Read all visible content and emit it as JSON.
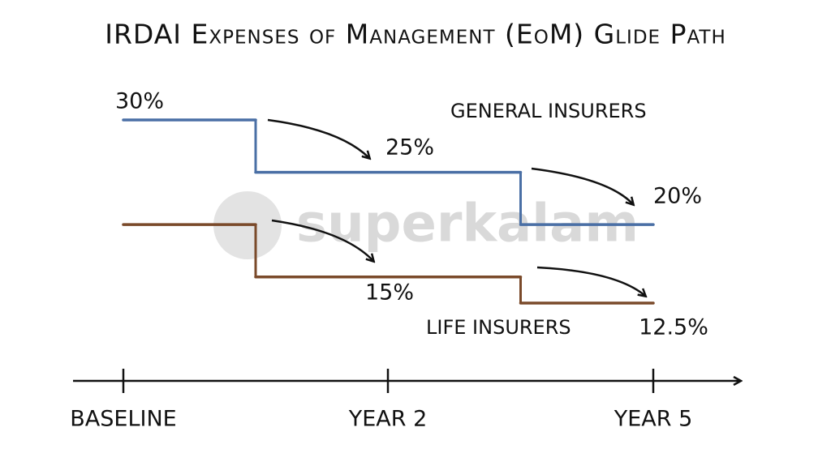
{
  "chart_data": {
    "type": "step",
    "title": "IRDAI Expenses of Management (EoM) Glide Path",
    "watermark": "superkalam",
    "categories": [
      "BASELINE",
      "YEAR 2",
      "YEAR 5"
    ],
    "series": [
      {
        "name": "GENERAL INSURERS",
        "color": "#4a6fa5",
        "values": [
          30,
          25,
          20
        ],
        "value_labels": [
          "30%",
          "25%",
          "20%"
        ]
      },
      {
        "name": "LIFE INSURERS",
        "color": "#7a4a2a",
        "values": [
          20,
          15,
          12.5
        ],
        "value_labels": [
          null,
          "15%",
          "12.5%"
        ]
      }
    ]
  }
}
